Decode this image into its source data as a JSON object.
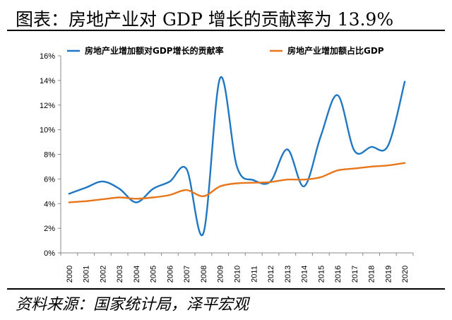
{
  "title": "图表：房地产业对 GDP 增长的贡献率为 13.9%",
  "source": "资料来源：国家统计局，泽平宏观",
  "chart_data": {
    "type": "line",
    "x": [
      "2000",
      "2001",
      "2002",
      "2003",
      "2004",
      "2005",
      "2006",
      "2007",
      "2008",
      "2009",
      "2010",
      "2011",
      "2012",
      "2013",
      "2014",
      "2015",
      "2016",
      "2017",
      "2018",
      "2019",
      "2020"
    ],
    "ylim": [
      0,
      16
    ],
    "yticks": [
      "0%",
      "2%",
      "4%",
      "6%",
      "8%",
      "10%",
      "12%",
      "14%",
      "16%"
    ],
    "legend_position": "top",
    "grid": false,
    "series": [
      {
        "name": "房地产业增加额对GDP增长的贡献率",
        "color": "#1f77c4",
        "values": [
          4.8,
          5.3,
          5.8,
          5.2,
          4.1,
          5.2,
          5.8,
          6.8,
          1.6,
          14.2,
          7.0,
          5.9,
          5.8,
          8.4,
          5.4,
          9.5,
          12.8,
          8.3,
          8.6,
          8.7,
          13.9
        ]
      },
      {
        "name": "房地产业增加额占比GDP",
        "color": "#e8761b",
        "values": [
          4.1,
          4.2,
          4.35,
          4.5,
          4.4,
          4.5,
          4.7,
          5.1,
          4.6,
          5.4,
          5.65,
          5.7,
          5.75,
          5.95,
          5.95,
          6.15,
          6.7,
          6.85,
          7.0,
          7.1,
          7.3
        ]
      }
    ]
  }
}
